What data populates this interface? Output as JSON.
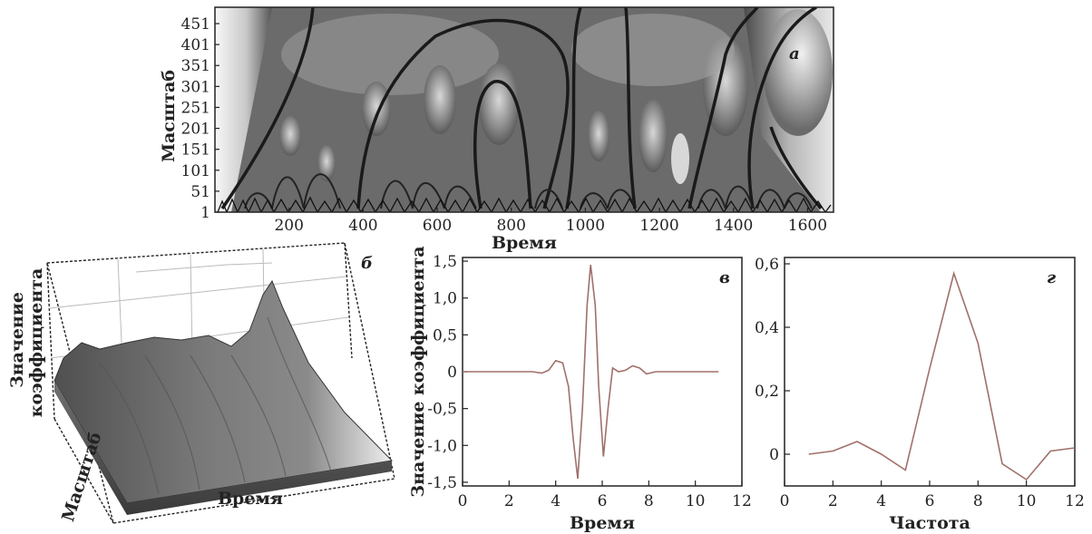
{
  "chart_data": [
    {
      "id": "a",
      "type": "heatmap",
      "panel_label": "а",
      "xlabel": "Время",
      "ylabel": "Масштаб",
      "xlim": [
        0,
        1670
      ],
      "ylim": [
        1,
        490
      ],
      "xticks": [
        200,
        400,
        600,
        800,
        1000,
        1200,
        1400,
        1600
      ],
      "yticks": [
        1,
        51,
        101,
        151,
        201,
        251,
        301,
        351,
        401,
        451
      ]
    },
    {
      "id": "b",
      "type": "surface",
      "panel_label": "б",
      "xlabel": "Время",
      "ylabel": "Масштаб",
      "zlabel_line1": "Значение",
      "zlabel_line2": "коэффициента"
    },
    {
      "id": "c",
      "type": "line",
      "panel_label": "в",
      "xlabel": "Время",
      "ylabel": "Значение коэффициента",
      "xlim": [
        0,
        12
      ],
      "ylim": [
        -1.55,
        1.55
      ],
      "xticks": [
        "0",
        "2",
        "4",
        "6",
        "8",
        "10",
        "12"
      ],
      "yticks": [
        {
          "v": 1.5,
          "label": "1,5"
        },
        {
          "v": 1.0,
          "label": "1,0"
        },
        {
          "v": 0.5,
          "label": "0,5"
        },
        {
          "v": 0.0,
          "label": "0"
        },
        {
          "v": -0.5,
          "label": "-0,5"
        },
        {
          "v": -1.0,
          "label": "-1,0"
        },
        {
          "v": -1.5,
          "label": "-1,5"
        }
      ],
      "line_color": "#a0706a",
      "x": [
        0,
        1,
        2,
        3,
        3.4,
        3.7,
        4.0,
        4.3,
        4.55,
        4.75,
        4.95,
        5.15,
        5.35,
        5.5,
        5.7,
        5.85,
        6.05,
        6.25,
        6.45,
        6.7,
        7.0,
        7.3,
        7.6,
        7.9,
        8.3,
        9,
        10,
        11
      ],
      "y": [
        0,
        0,
        0,
        0,
        -0.02,
        0.02,
        0.15,
        0.12,
        -0.2,
        -0.9,
        -1.45,
        -0.5,
        0.9,
        1.45,
        0.9,
        -0.2,
        -1.15,
        -0.5,
        0.05,
        0.0,
        0.02,
        0.08,
        0.05,
        -0.03,
        0,
        0,
        0,
        0
      ]
    },
    {
      "id": "d",
      "type": "line",
      "panel_label": "г",
      "xlabel": "Частота",
      "ylabel": "",
      "xlim": [
        0,
        12
      ],
      "ylim": [
        -0.1,
        0.62
      ],
      "xticks": [
        "0",
        "2",
        "4",
        "6",
        "8",
        "10",
        "12"
      ],
      "yticks": [
        {
          "v": 0.6,
          "label": "0,6"
        },
        {
          "v": 0.4,
          "label": "0,4"
        },
        {
          "v": 0.2,
          "label": "0,2"
        },
        {
          "v": 0.0,
          "label": "0"
        }
      ],
      "line_color": "#a0706a",
      "x": [
        1,
        2,
        3,
        4,
        5,
        6,
        7,
        8,
        9,
        10,
        11,
        12
      ],
      "y": [
        0.0,
        0.01,
        0.04,
        0.0,
        -0.05,
        0.27,
        0.57,
        0.35,
        -0.03,
        -0.08,
        0.01,
        0.02
      ]
    }
  ]
}
